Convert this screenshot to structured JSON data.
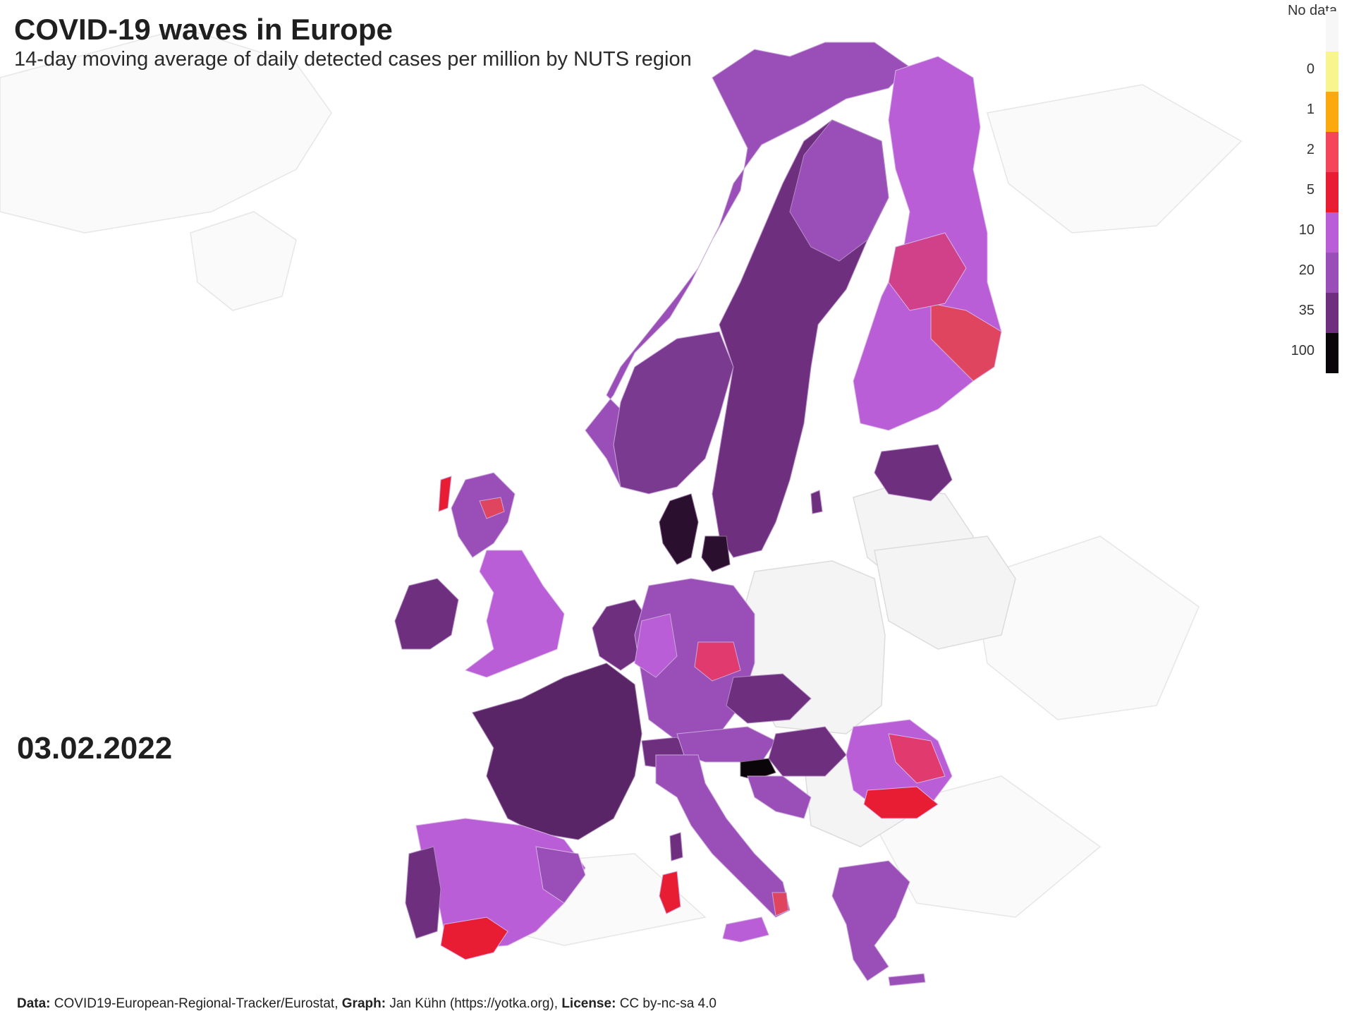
{
  "title": "COVID-19 waves in Europe",
  "subtitle": "14-day moving average of daily detected cases per million by NUTS region",
  "date": "03.02.2022",
  "legend": {
    "nodata_label": "No data",
    "nodata_color": "#f7f7f7",
    "bins": [
      {
        "label": "0",
        "color": "#f8f58f"
      },
      {
        "label": "1",
        "color": "#fba90c"
      },
      {
        "label": "2",
        "color": "#f4455a"
      },
      {
        "label": "5",
        "color": "#e81d33"
      },
      {
        "label": "10",
        "color": "#b95ed6"
      },
      {
        "label": "20",
        "color": "#9a4fb8"
      },
      {
        "label": "35",
        "color": "#6e2f7f"
      },
      {
        "label": "100",
        "color": "#0a0508"
      }
    ]
  },
  "caption": {
    "data_label": "Data:",
    "data_value": "COVID19-European-Regional-Tracker/Eurostat,",
    "graph_label": "Graph:",
    "graph_value": "Jan Kühn (https://yotka.org),",
    "license_label": "License:",
    "license_value": "CC by-nc-sa 4.0"
  },
  "colors": {
    "background": "#ffffff",
    "unmapped_land": "#f4f4f4",
    "border": "#dadada"
  }
}
